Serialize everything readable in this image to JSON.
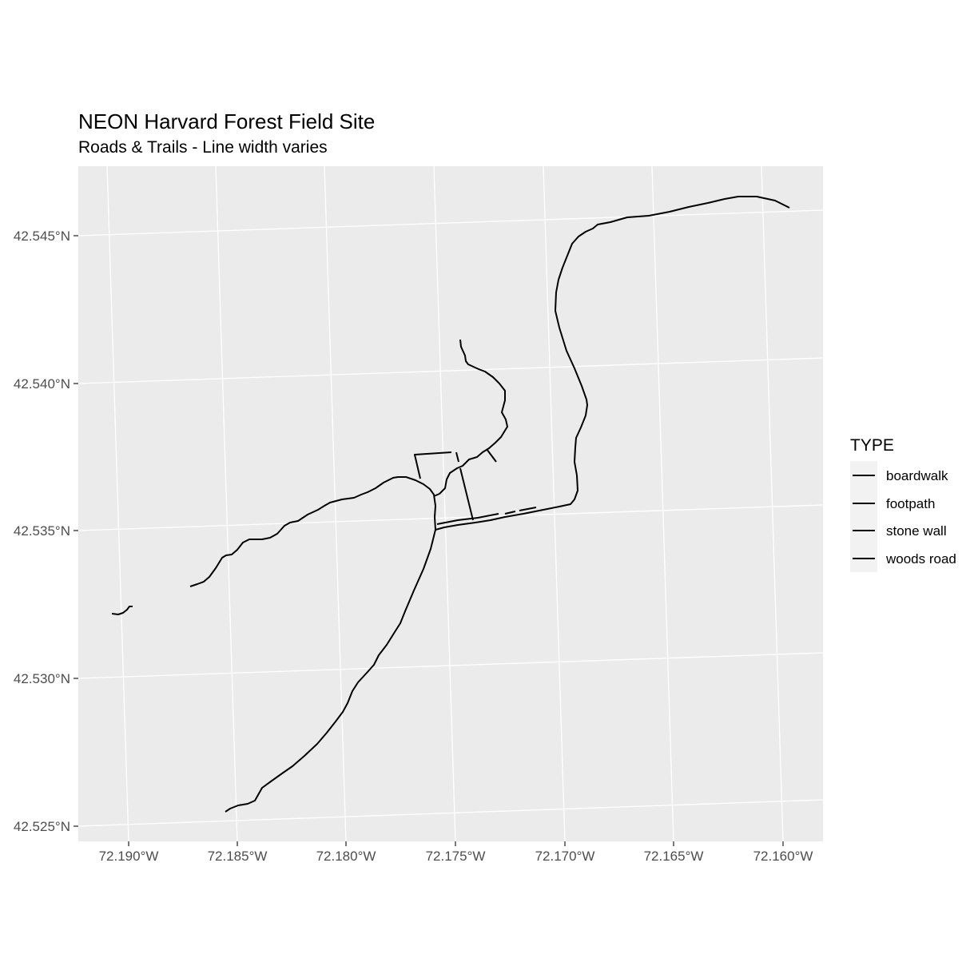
{
  "chart_data": {
    "type": "map",
    "title": "NEON Harvard Forest Field Site",
    "subtitle": "Roads & Trails - Line width varies",
    "x_ticks": [
      "72.190°W",
      "72.185°W",
      "72.180°W",
      "72.175°W",
      "72.170°W",
      "72.165°W",
      "72.160°W"
    ],
    "y_ticks": [
      "42.545°N",
      "42.540°N",
      "42.535°N",
      "42.530°N",
      "42.525°N"
    ],
    "legend": {
      "title": "TYPE",
      "entries": [
        "boardwalk",
        "footpath",
        "stone wall",
        "woods road"
      ]
    },
    "colors": {
      "panel": "#ebebeb",
      "grid": "#ffffff",
      "line": "#000000",
      "legend_key": "#f2f2f2"
    }
  }
}
